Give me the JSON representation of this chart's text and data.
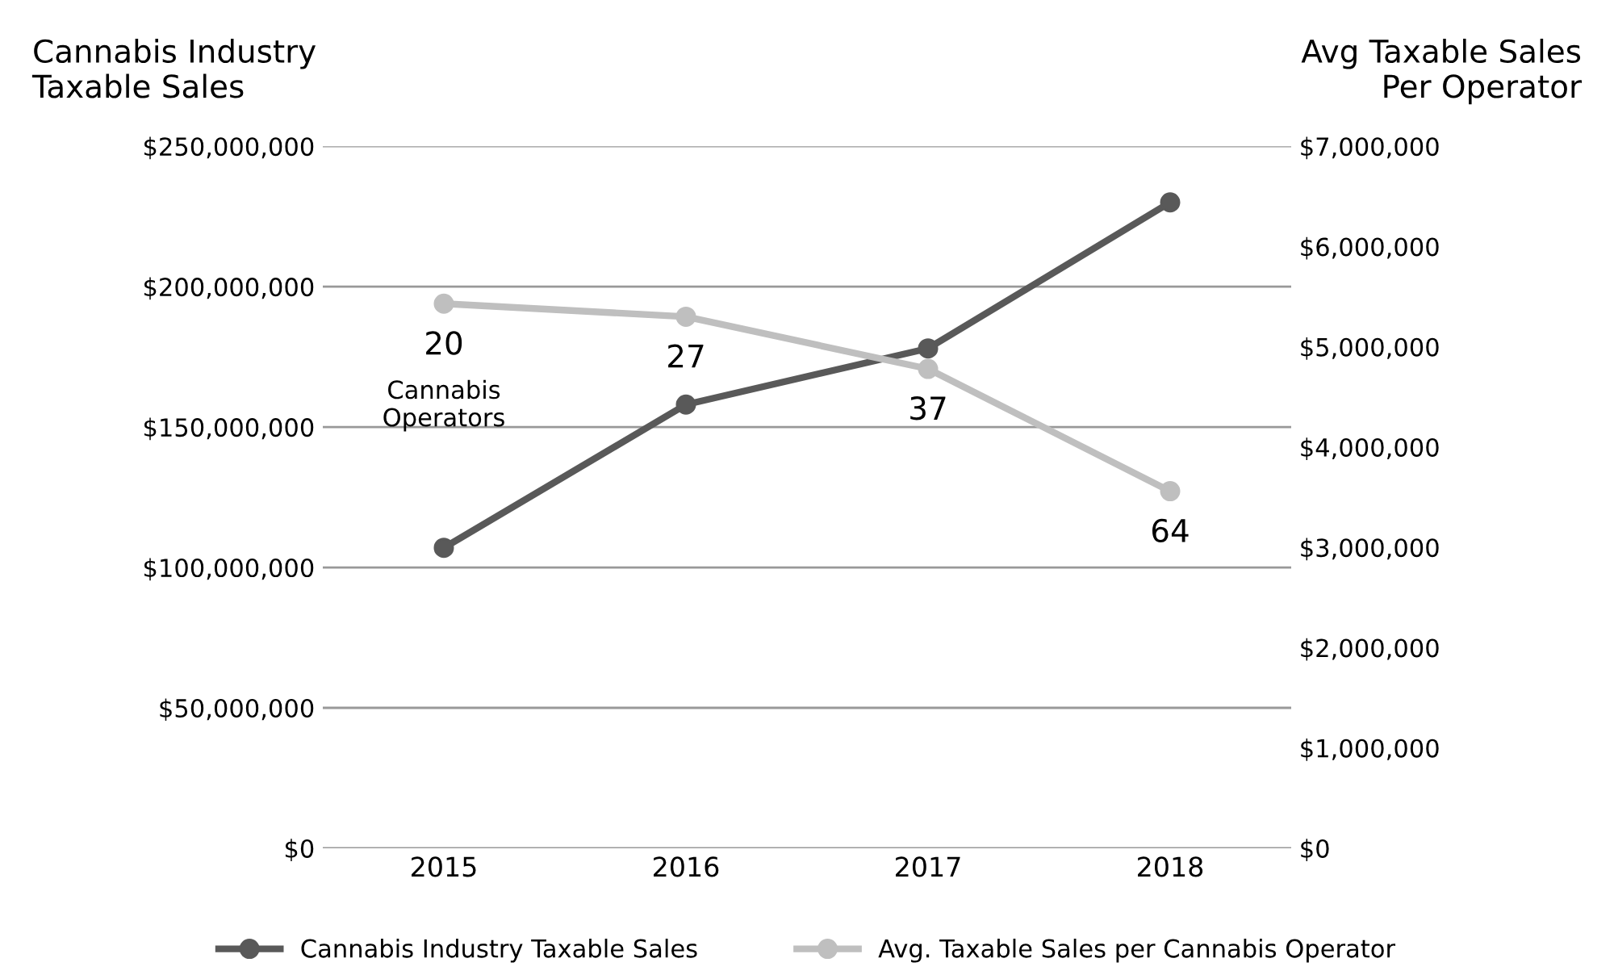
{
  "chart_data": {
    "type": "line",
    "ylabel": "Cannabis Industry\nTaxable Sales",
    "y2label": "Avg Taxable Sales\nPer Operator",
    "categories": [
      "2015",
      "2016",
      "2017",
      "2018"
    ],
    "series": [
      {
        "name": "Cannabis Industry Taxable Sales",
        "color": "#595959",
        "values": [
          107000000,
          158000000,
          178000000,
          230000000
        ]
      },
      {
        "name": "Avg. Taxable Sales per Cannabis Operator",
        "color": "#bfbfbf",
        "axis": "y2",
        "values": [
          5430000,
          5300000,
          4780000,
          3560000
        ]
      }
    ],
    "ylim": [
      0,
      250000000
    ],
    "yticks": [
      {
        "value": 0,
        "label": "$0"
      },
      {
        "value": 50000000,
        "label": "$50,000,000"
      },
      {
        "value": 100000000,
        "label": "$100,000,000"
      },
      {
        "value": 150000000,
        "label": "$150,000,000"
      },
      {
        "value": 200000000,
        "label": "$200,000,000"
      },
      {
        "value": 250000000,
        "label": "$250,000,000"
      }
    ],
    "y2lim": [
      0,
      7000000
    ],
    "y2ticks": [
      {
        "value": 0,
        "label": "$0"
      },
      {
        "value": 1000000,
        "label": "$1,000,000"
      },
      {
        "value": 2000000,
        "label": "$2,000,000"
      },
      {
        "value": 3000000,
        "label": "$3,000,000"
      },
      {
        "value": 4000000,
        "label": "$4,000,000"
      },
      {
        "value": 5000000,
        "label": "$5,000,000"
      },
      {
        "value": 6000000,
        "label": "$6,000,000"
      },
      {
        "value": 7000000,
        "label": "$7,000,000"
      }
    ],
    "annotations": [
      "20",
      "27",
      "37",
      "64",
      "Cannabis\nOperators"
    ],
    "grid": "y",
    "legend": "bottom",
    "marker": "circle",
    "line_style": "solid"
  }
}
